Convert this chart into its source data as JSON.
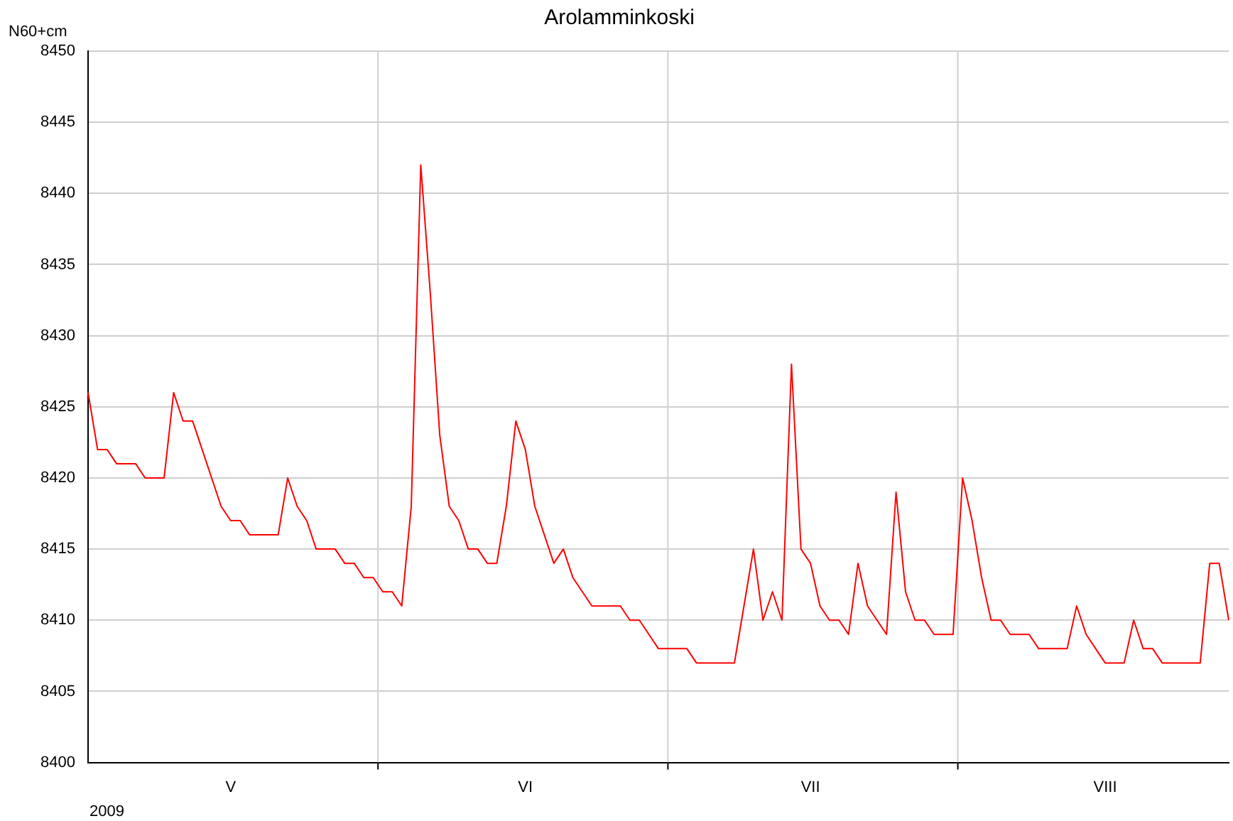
{
  "chart_data": {
    "type": "line",
    "title": "Arolamminkoski",
    "ylabel": "N60+cm",
    "annotations": [
      "2009"
    ],
    "categories": [
      null,
      null,
      null,
      null,
      null,
      null,
      null,
      null,
      null,
      null,
      null,
      null,
      null,
      null,
      null,
      "V",
      null,
      null,
      null,
      null,
      null,
      null,
      null,
      null,
      null,
      null,
      null,
      null,
      null,
      null,
      null,
      null,
      null,
      null,
      null,
      null,
      null,
      null,
      null,
      null,
      null,
      null,
      null,
      null,
      null,
      null,
      "VI",
      null,
      null,
      null,
      null,
      null,
      null,
      null,
      null,
      null,
      null,
      null,
      null,
      null,
      null,
      null,
      null,
      null,
      null,
      null,
      null,
      null,
      null,
      null,
      null,
      null,
      null,
      null,
      null,
      null,
      "VII",
      null,
      null,
      null,
      null,
      null,
      null,
      null,
      null,
      null,
      null,
      null,
      null,
      null,
      null,
      null,
      null,
      null,
      null,
      null,
      null,
      null,
      null,
      null,
      null,
      null,
      null,
      null,
      null,
      null,
      null,
      "VIII",
      null,
      null,
      null,
      null,
      null,
      null,
      null,
      null,
      null,
      null,
      null,
      null,
      null
    ],
    "series": [
      {
        "color": "#ff0000",
        "values": [
          8426,
          8422,
          8422,
          8421,
          8421,
          8421,
          8420,
          8420,
          8420,
          8426,
          8424,
          8424,
          8422,
          8420,
          8418,
          8417,
          8417,
          8416,
          8416,
          8416,
          8416,
          8420,
          8418,
          8417,
          8415,
          8415,
          8415,
          8414,
          8414,
          8413,
          8413,
          8412,
          8412,
          8411,
          8418,
          8442,
          8433,
          8423,
          8418,
          8417,
          8415,
          8415,
          8414,
          8414,
          8418,
          8424,
          8422,
          8418,
          8416,
          8414,
          8415,
          8413,
          8412,
          8411,
          8411,
          8411,
          8411,
          8410,
          8410,
          8409,
          8408,
          8408,
          8408,
          8408,
          8407,
          8407,
          8407,
          8407,
          8407,
          8411,
          8415,
          8410,
          8412,
          8410,
          8428,
          8415,
          8414,
          8411,
          8410,
          8410,
          8409,
          8414,
          8411,
          8410,
          8409,
          8419,
          8412,
          8410,
          8410,
          8409,
          8409,
          8409,
          8420,
          8417,
          8413,
          8410,
          8410,
          8409,
          8409,
          8409,
          8408,
          8408,
          8408,
          8408,
          8411,
          8409,
          8408,
          8407,
          8407,
          8407,
          8410,
          8408,
          8408,
          8407,
          8407,
          8407,
          8407,
          8407,
          8414,
          8414,
          8410
        ]
      }
    ],
    "ylim": [
      8400,
      8450
    ],
    "yticks": [
      8400,
      8405,
      8410,
      8415,
      8420,
      8425,
      8430,
      8435,
      8440,
      8445,
      8450
    ],
    "grid": true,
    "legend": false,
    "marker": "none",
    "line_style": "solid"
  }
}
